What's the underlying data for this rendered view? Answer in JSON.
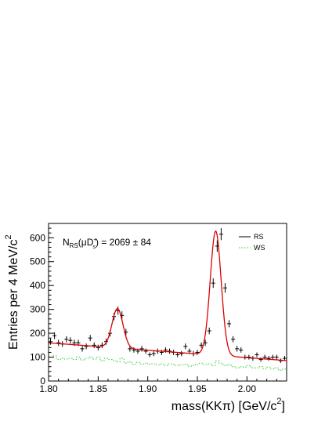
{
  "chart_data": {
    "type": "scatter",
    "title": "",
    "xlabel": "mass(KKπ) [GeV/c²]",
    "xlabel_parts": {
      "main": "mass(KKπ) [GeV/c",
      "sup": "2",
      "tail": "]"
    },
    "ylabel": "Entries per 4 MeV/c²",
    "ylabel_parts": {
      "main": "Entries per 4 MeV/c",
      "sup": "2"
    },
    "xlim": [
      1.8,
      2.04
    ],
    "ylim": [
      0,
      660
    ],
    "x_ticks": [
      1.8,
      1.85,
      1.9,
      1.95,
      2.0
    ],
    "x_tick_labels": [
      "1.80",
      "1.85",
      "1.90",
      "1.95",
      "2.00"
    ],
    "y_ticks": [
      0,
      100,
      200,
      300,
      400,
      500,
      600
    ],
    "y_tick_labels": [
      "0",
      "100",
      "200",
      "300",
      "400",
      "500",
      "600"
    ],
    "annotation": {
      "text": "N_RS(μD_s^+) = 2069 ± 84",
      "n": "N",
      "n_sub": "RS",
      "paren_open": "(μD",
      "ds_sup": "+",
      "ds_sub": "s",
      "rest": ") = 2069 ± 84"
    },
    "legend_position": "top-right",
    "series": [
      {
        "name": "RS",
        "kind": "points-with-errors",
        "color": "#000000",
        "x": [
          1.802,
          1.806,
          1.81,
          1.814,
          1.818,
          1.822,
          1.826,
          1.83,
          1.834,
          1.838,
          1.842,
          1.846,
          1.85,
          1.854,
          1.858,
          1.862,
          1.866,
          1.87,
          1.874,
          1.878,
          1.882,
          1.886,
          1.89,
          1.894,
          1.898,
          1.902,
          1.906,
          1.91,
          1.914,
          1.918,
          1.922,
          1.926,
          1.93,
          1.934,
          1.938,
          1.942,
          1.946,
          1.95,
          1.954,
          1.958,
          1.962,
          1.966,
          1.97,
          1.974,
          1.978,
          1.982,
          1.986,
          1.99,
          1.994,
          1.998,
          2.002,
          2.006,
          2.01,
          2.014,
          2.018,
          2.022,
          2.026,
          2.03,
          2.034,
          2.038
        ],
        "y": [
          165,
          190,
          160,
          155,
          175,
          170,
          160,
          160,
          135,
          145,
          180,
          150,
          140,
          150,
          165,
          200,
          270,
          295,
          275,
          205,
          135,
          130,
          125,
          135,
          125,
          110,
          115,
          125,
          120,
          130,
          125,
          120,
          110,
          115,
          145,
          125,
          115,
          120,
          150,
          160,
          210,
          410,
          565,
          615,
          390,
          240,
          175,
          135,
          130,
          100,
          100,
          95,
          110,
          90,
          100,
          95,
          100,
          100,
          85,
          95
        ],
        "yerr": [
          13,
          14,
          13,
          12,
          13,
          13,
          13,
          13,
          12,
          12,
          13,
          12,
          12,
          12,
          13,
          14,
          16,
          17,
          17,
          14,
          12,
          11,
          11,
          12,
          11,
          10,
          11,
          11,
          11,
          11,
          11,
          11,
          10,
          11,
          12,
          11,
          11,
          11,
          12,
          13,
          14,
          20,
          24,
          25,
          20,
          15,
          13,
          12,
          11,
          10,
          10,
          10,
          10,
          9,
          10,
          10,
          10,
          10,
          9,
          10
        ]
      },
      {
        "name": "WS",
        "kind": "dotted-histogram",
        "color": "#33cc33",
        "x": [
          1.802,
          1.806,
          1.81,
          1.814,
          1.818,
          1.822,
          1.826,
          1.83,
          1.834,
          1.838,
          1.842,
          1.846,
          1.85,
          1.854,
          1.858,
          1.862,
          1.866,
          1.87,
          1.874,
          1.878,
          1.882,
          1.886,
          1.89,
          1.894,
          1.898,
          1.902,
          1.906,
          1.91,
          1.914,
          1.918,
          1.922,
          1.926,
          1.93,
          1.934,
          1.938,
          1.942,
          1.946,
          1.95,
          1.954,
          1.958,
          1.962,
          1.966,
          1.97,
          1.974,
          1.978,
          1.982,
          1.986,
          1.99,
          1.994,
          1.998,
          2.002,
          2.006,
          2.01,
          2.014,
          2.018,
          2.022,
          2.026,
          2.03,
          2.034,
          2.038
        ],
        "y": [
          100,
          105,
          90,
          95,
          92,
          95,
          90,
          100,
          88,
          95,
          100,
          92,
          100,
          85,
          95,
          90,
          85,
          80,
          95,
          75,
          80,
          70,
          78,
          72,
          75,
          70,
          72,
          68,
          72,
          65,
          72,
          70,
          65,
          68,
          70,
          62,
          65,
          70,
          75,
          70,
          72,
          65,
          85,
          75,
          65,
          70,
          60,
          55,
          60,
          58,
          65,
          55,
          55,
          60,
          52,
          58,
          50,
          55,
          45,
          50
        ]
      },
      {
        "name": "",
        "kind": "fit-curve",
        "color": "#dd0000",
        "background": {
          "a": 160,
          "b": -310
        },
        "peaks": [
          {
            "mean": 1.8695,
            "sigma": 0.0055,
            "amplitude": 165
          },
          {
            "mean": 1.9685,
            "sigma": 0.0055,
            "amplitude": 520
          }
        ]
      }
    ],
    "legend": [
      {
        "label": "RS",
        "style": "solid",
        "color": "#000000"
      },
      {
        "label": "WS",
        "style": "dotted",
        "color": "#33cc33"
      }
    ]
  }
}
